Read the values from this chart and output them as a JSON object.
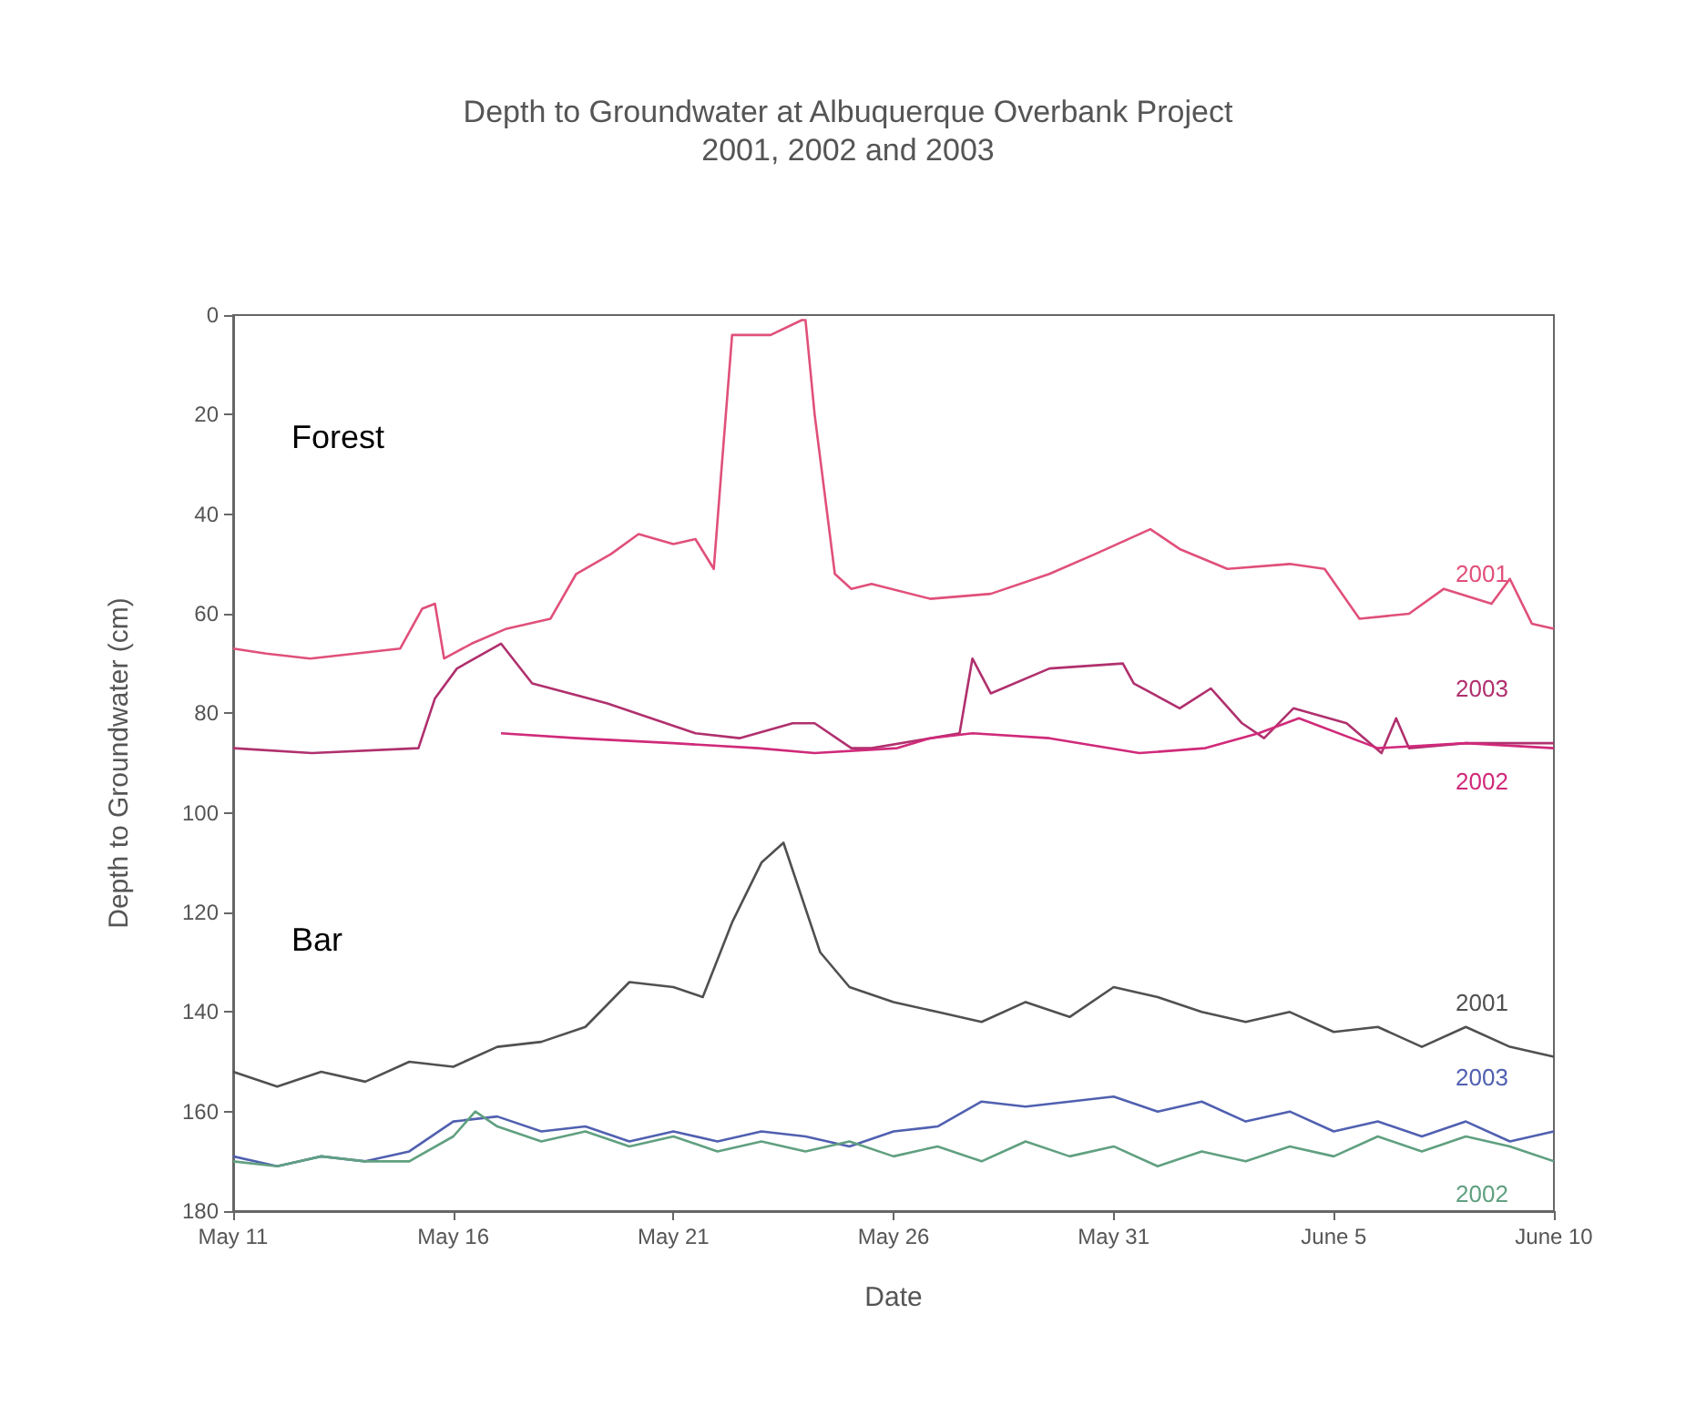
{
  "chart_data": {
    "type": "line",
    "title": "Depth to Groundwater at Albuquerque Overbank Project",
    "subtitle": "2001, 2002 and 2003",
    "xlabel": "Date",
    "ylabel": "Depth to Groundwater (cm)",
    "annotations": [
      "Forest",
      "Bar"
    ],
    "xlim": [
      "--05-11",
      "--06-10"
    ],
    "xticks": [
      {
        "value": "--05-11",
        "label": "May 11"
      },
      {
        "value": "--05-16",
        "label": "May 16"
      },
      {
        "value": "--05-21",
        "label": "May 21"
      },
      {
        "value": "--05-26",
        "label": "May 26"
      },
      {
        "value": "--05-31",
        "label": "May 31"
      },
      {
        "value": "--06-05",
        "label": "June 5"
      },
      {
        "value": "--06-10",
        "label": "June 10"
      }
    ],
    "ylim": [
      180,
      0
    ],
    "yticks": [
      0,
      20,
      40,
      60,
      80,
      100,
      120,
      140,
      160,
      180
    ],
    "grid": false,
    "legend": false,
    "marker": "none",
    "line_style": "solid",
    "series": [
      {
        "name": "2001",
        "color": "#e0507a",
        "x": [
          "--05-11T00:00",
          "--05-11T18:00",
          "--05-12T18:00",
          "--05-14T19:00",
          "--05-15T07:00",
          "--05-15T14:00",
          "--05-15T19:00",
          "--05-16T10:00",
          "--05-17T05:00",
          "--05-18T05:00",
          "--05-18T19:00",
          "--05-19T14:00",
          "--05-20T05:00",
          "--05-21T00:00",
          "--05-21T12:00",
          "--05-21T22:00",
          "--05-22T02:00",
          "--05-22T08:00",
          "--05-23T05:00",
          "--05-23T22:00",
          "--05-24T00:00",
          "--05-24T05:00",
          "--05-24T16:00",
          "--05-25T01:00",
          "--05-25T12:00",
          "--05-26T20:00",
          "--05-28T05:00",
          "--05-29T13:00",
          "--05-30T14:00",
          "--05-31T20:00",
          "--06-01T12:00",
          "--06-02T14:00",
          "--06-04T00:00",
          "--06-04T19:00",
          "--06-05T14:00",
          "--06-06T17:00",
          "--06-07T12:00",
          "--06-08T14:00",
          "--06-09T00:00",
          "--06-09T12:00",
          "--06-10T00:00"
        ],
        "values": [
          67,
          68,
          69,
          67,
          59,
          58,
          69,
          66,
          63,
          61,
          52,
          48,
          44,
          46,
          45,
          51,
          32,
          4,
          4,
          1,
          1,
          20,
          52,
          55,
          54,
          57,
          56,
          52,
          48,
          43,
          47,
          51,
          50,
          51,
          61,
          60,
          55,
          58,
          53,
          62,
          63
        ]
      },
      {
        "name": "2003",
        "color": "#b0306e",
        "x": [
          "--05-11T00:00",
          "--05-12T19:00",
          "--05-15T05:00",
          "--05-15T14:00",
          "--05-16T02:00",
          "--05-17T02:00",
          "--05-17T19:00",
          "--05-19T12:00",
          "--05-21T12:00",
          "--05-22T12:00",
          "--05-23T17:00",
          "--05-24T05:00",
          "--05-25T01:00",
          "--05-25T12:00",
          "--05-27T12:00",
          "--05-27T19:00",
          "--05-28T05:00",
          "--05-29T13:00",
          "--05-31T05:00",
          "--05-31T11:00",
          "--06-01T12:00",
          "--06-02T05:00",
          "--06-02T22:00",
          "--06-03T10:00",
          "--06-04T02:00",
          "--06-05T07:00",
          "--06-06T02:00",
          "--06-06T10:00",
          "--06-06T17:00",
          "--06-08T00:00",
          "--06-10T00:00"
        ],
        "values": [
          87,
          88,
          87,
          77,
          71,
          66,
          74,
          78,
          84,
          85,
          82,
          82,
          87,
          87,
          84,
          69,
          76,
          71,
          70,
          74,
          79,
          75,
          82,
          85,
          79,
          82,
          88,
          81,
          87,
          86,
          86
        ]
      },
      {
        "name": "2002",
        "color": "#d02a7a",
        "x": [
          "--05-17T02:00",
          "--05-18T19:00",
          "--05-21T00:00",
          "--05-22T22:00",
          "--05-24T05:00",
          "--05-26T02:00",
          "--05-26T20:00",
          "--05-27T19:00",
          "--05-29T13:00",
          "--05-31T14:00",
          "--06-02T02:00",
          "--06-03T07:00",
          "--06-04T05:00",
          "--06-06T00:00",
          "--06-08T00:00",
          "--06-10T00:00"
        ],
        "values": [
          84,
          85,
          86,
          87,
          88,
          87,
          85,
          84,
          85,
          88,
          87,
          84,
          81,
          87,
          86,
          87
        ]
      },
      {
        "name": "2001",
        "color": "#505050",
        "x": [
          "--05-11T00:00",
          "--05-12T00:00",
          "--05-13T00:00",
          "--05-14T00:00",
          "--05-15T00:00",
          "--05-16T00:00",
          "--05-17T00:00",
          "--05-18T00:00",
          "--05-19T00:00",
          "--05-20T00:00",
          "--05-21T00:00",
          "--05-21T16:00",
          "--05-22T08:00",
          "--05-23T00:00",
          "--05-23T12:00",
          "--05-24T08:00",
          "--05-25T00:00",
          "--05-26T00:00",
          "--05-27T00:00",
          "--05-28T00:00",
          "--05-29T00:00",
          "--05-30T00:00",
          "--05-31T00:00",
          "--06-01T00:00",
          "--06-02T00:00",
          "--06-03T00:00",
          "--06-04T00:00",
          "--06-05T00:00",
          "--06-06T00:00",
          "--06-07T00:00",
          "--06-08T00:00",
          "--06-09T00:00",
          "--06-10T00:00"
        ],
        "values": [
          152,
          155,
          152,
          154,
          150,
          151,
          147,
          146,
          143,
          134,
          135,
          137,
          122,
          110,
          106,
          128,
          135,
          138,
          140,
          142,
          138,
          141,
          135,
          137,
          140,
          142,
          140,
          144,
          143,
          147,
          143,
          147,
          149
        ]
      },
      {
        "name": "2003",
        "color": "#5060b0",
        "x": [
          "--05-11T00:00",
          "--05-12T00:00",
          "--05-13T00:00",
          "--05-14T00:00",
          "--05-15T00:00",
          "--05-16T00:00",
          "--05-17T00:00",
          "--05-18T00:00",
          "--05-19T00:00",
          "--05-20T00:00",
          "--05-21T00:00",
          "--05-22T00:00",
          "--05-23T00:00",
          "--05-24T00:00",
          "--05-25T00:00",
          "--05-26T00:00",
          "--05-27T00:00",
          "--05-28T00:00",
          "--05-29T00:00",
          "--05-30T00:00",
          "--05-31T00:00",
          "--06-01T00:00",
          "--06-02T00:00",
          "--06-03T00:00",
          "--06-04T00:00",
          "--06-05T00:00",
          "--06-06T00:00",
          "--06-07T00:00",
          "--06-08T00:00",
          "--06-09T00:00",
          "--06-10T00:00"
        ],
        "values": [
          169,
          171,
          169,
          170,
          168,
          162,
          161,
          164,
          163,
          166,
          164,
          166,
          164,
          165,
          167,
          164,
          163,
          158,
          159,
          158,
          157,
          160,
          158,
          162,
          160,
          164,
          162,
          165,
          162,
          166,
          164
        ]
      },
      {
        "name": "2002",
        "color": "#60a080",
        "x": [
          "--05-11T00:00",
          "--05-12T00:00",
          "--05-13T00:00",
          "--05-14T00:00",
          "--05-15T00:00",
          "--05-16T00:00",
          "--05-16T12:00",
          "--05-17T00:00",
          "--05-18T00:00",
          "--05-19T00:00",
          "--05-20T00:00",
          "--05-21T00:00",
          "--05-22T00:00",
          "--05-23T00:00",
          "--05-24T00:00",
          "--05-25T00:00",
          "--05-26T00:00",
          "--05-27T00:00",
          "--05-28T00:00",
          "--05-29T00:00",
          "--05-30T00:00",
          "--05-31T00:00",
          "--06-01T00:00",
          "--06-02T00:00",
          "--06-03T00:00",
          "--06-04T00:00",
          "--06-05T00:00",
          "--06-06T00:00",
          "--06-07T00:00",
          "--06-08T00:00",
          "--06-09T00:00",
          "--06-10T00:00"
        ],
        "values": [
          170,
          171,
          169,
          170,
          170,
          165,
          160,
          163,
          166,
          164,
          167,
          165,
          168,
          166,
          168,
          166,
          169,
          167,
          170,
          166,
          169,
          167,
          171,
          168,
          170,
          167,
          169,
          165,
          168,
          165,
          167,
          170
        ]
      }
    ]
  }
}
